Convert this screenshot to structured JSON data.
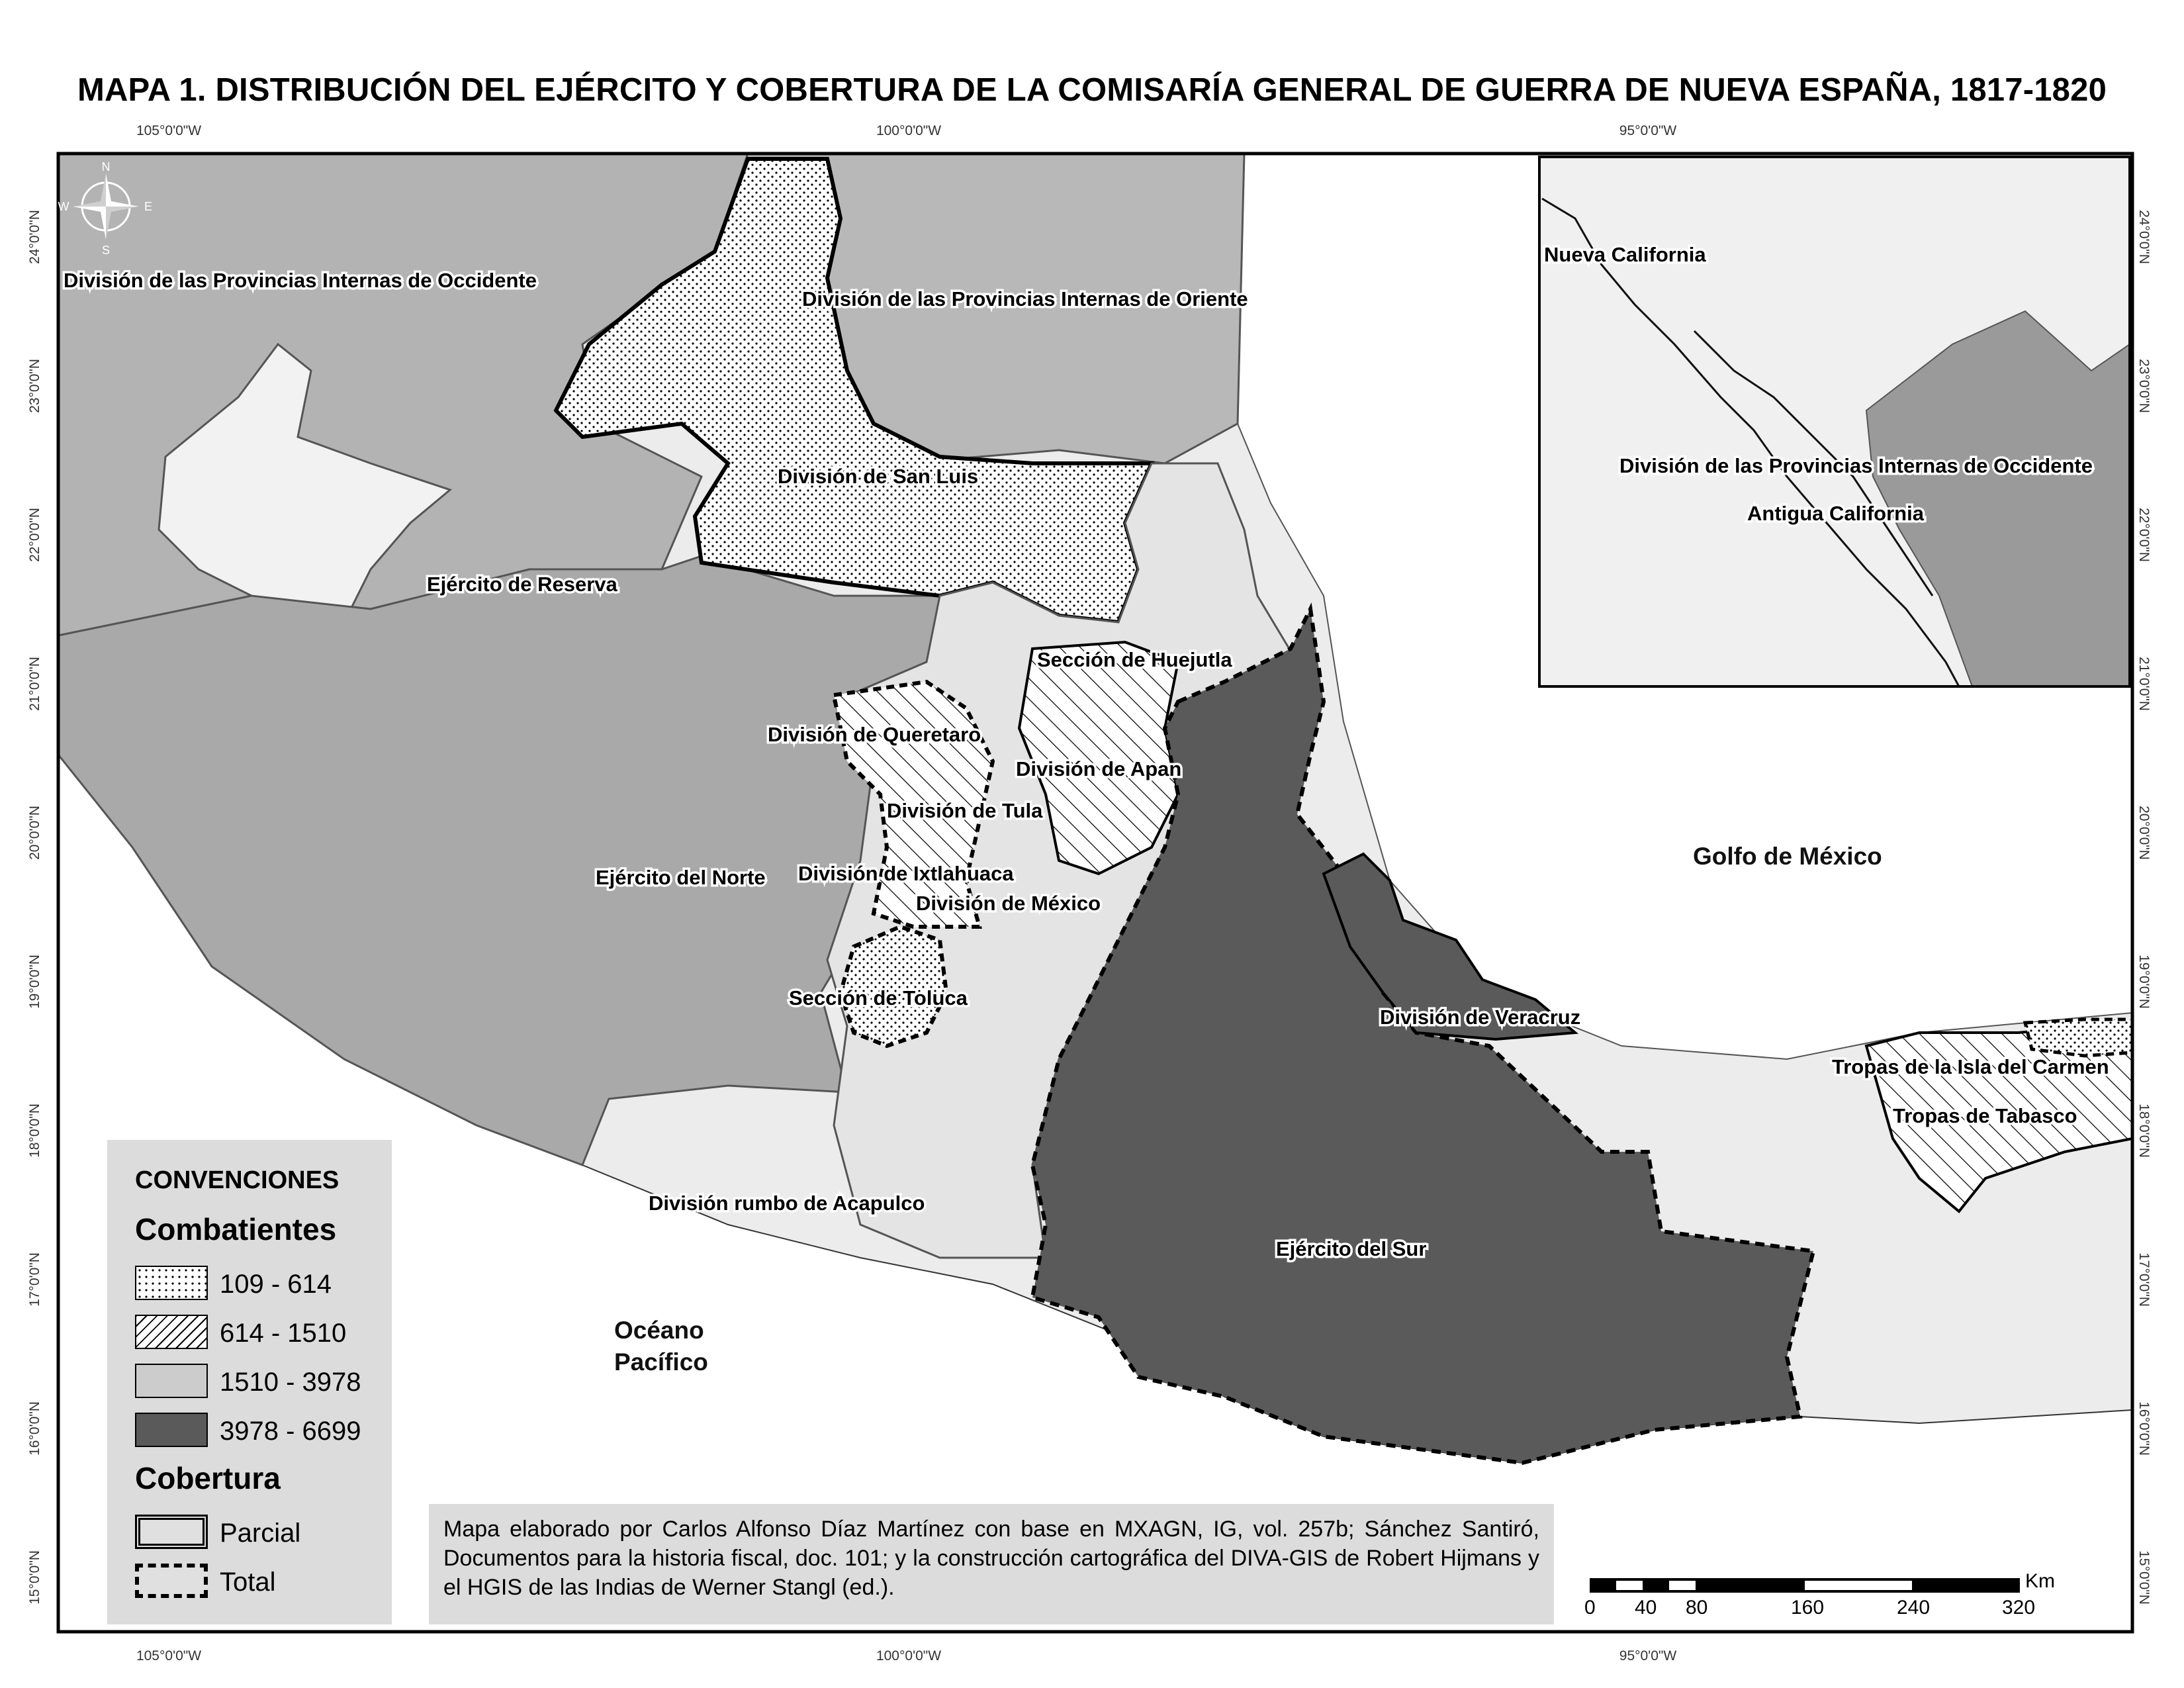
{
  "title": "MAPA 1. DISTRIBUCIÓN DEL EJÉRCITO Y COBERTURA DE LA COMISARÍA GENERAL DE GUERRA DE NUEVA ESPAÑA, 1817-1820",
  "axes": {
    "longitude_ticks": [
      "105°0'0\"W",
      "100°0'0\"W",
      "95°0'0\"W"
    ],
    "latitude_ticks": [
      "24°0'0\"N",
      "23°0'0\"N",
      "22°0'0\"N",
      "21°0'0\"N",
      "20°0'0\"N",
      "19°0'0\"N",
      "18°0'0\"N",
      "17°0'0\"N",
      "16°0'0\"N",
      "15°0'0\"N"
    ]
  },
  "compass": {
    "icon": "compass-rose-icon",
    "n": "N",
    "s": "S",
    "e": "E",
    "w": "W"
  },
  "regions": {
    "occidente": "División de las Provincias Internas de Occidente",
    "oriente": "División de las Provincias Internas de Oriente",
    "san_luis": "División de San Luis",
    "reserva": "Ejército de Reserva",
    "huejutla": "Sección de Huejutla",
    "queretaro": "División de Queretaro",
    "apan": "División de Apan",
    "tula": "División de Tula",
    "norte": "Ejército del Norte",
    "ixtlahuaca": "División de Ixtlahuaca",
    "mexico": "División de México",
    "toluca": "Sección de Toluca",
    "veracruz": "División de Veracruz",
    "acapulco": "División rumbo de Acapulco",
    "sur": "Ejército del Sur",
    "isla_carmen": "Tropas de la Isla del Carmen",
    "tabasco": "Tropas de Tabasco"
  },
  "water": {
    "golfo": "Golfo de México",
    "oceano_1": "Océano",
    "oceano_2": "Pacífico"
  },
  "inset": {
    "nueva_california": "Nueva California",
    "occidente": "División de las Provincias Internas de Occidente",
    "antigua_california": "Antigua California"
  },
  "legend": {
    "heading": "CONVENCIONES",
    "combatientes_title": "Combatientes",
    "classes": [
      {
        "label": "109 - 614",
        "pattern": "dots"
      },
      {
        "label": "614 - 1510",
        "pattern": "hatch"
      },
      {
        "label": "1510 - 3978",
        "fill": "#cccccc"
      },
      {
        "label": "3978 - 6699",
        "fill": "#5a5a5a"
      }
    ],
    "cobertura_title": "Cobertura",
    "coverage": [
      {
        "label": "Parcial",
        "style": "double-line"
      },
      {
        "label": "Total",
        "style": "dashed-black-white"
      }
    ]
  },
  "credit": "Mapa elaborado por Carlos Alfonso Díaz Martínez con base en MXAGN, IG, vol. 257b; Sánchez Santiró, Documentos para la historia fiscal, doc. 101; y la construcción cartográfica del DIVA-GIS de Robert Hijmans y el HGIS de las Indias de Werner Stangl (ed.).",
  "scale": {
    "unit": "Km",
    "labels": [
      "0",
      "40",
      "80",
      "160",
      "240",
      "320"
    ]
  },
  "colors": {
    "dark_region": "#5a5a5a",
    "mid_region": "#a9a9a9",
    "light_region": "#cccccc",
    "land_pale": "#ececec",
    "sea": "#ffffff"
  }
}
